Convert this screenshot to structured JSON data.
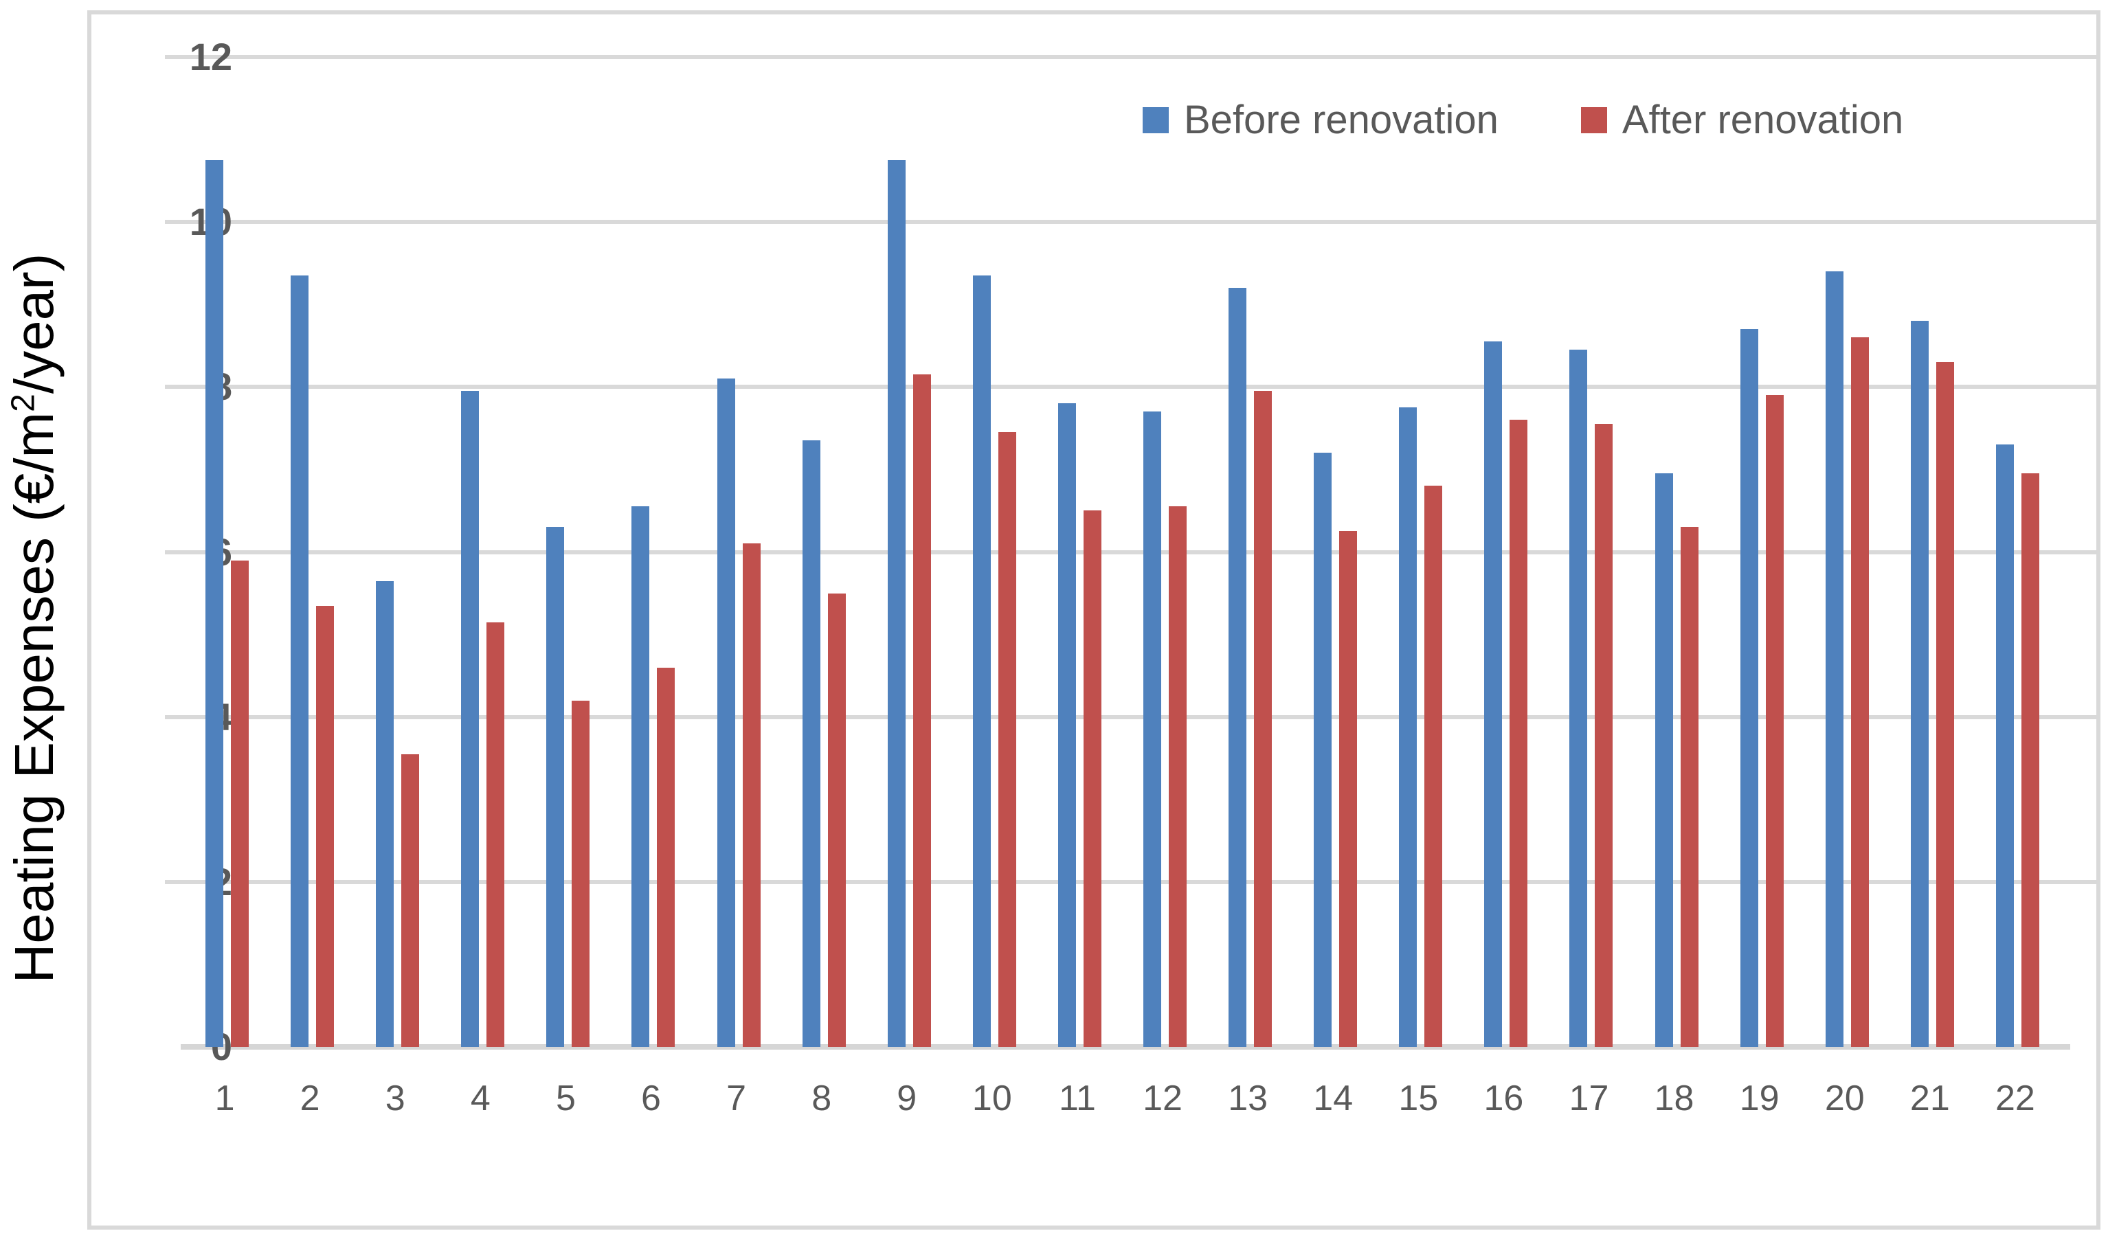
{
  "colors": {
    "before": "#4f81bd",
    "after": "#c0504d",
    "gridline": "#d9d9d9",
    "axis_line": "#d6d6d6",
    "tick_text": "#595959",
    "frame_border": "#d9d9d9",
    "y_title_text": "#000000"
  },
  "y_axis": {
    "title_prefix": "Heating Expenses (€/m",
    "title_sup": "2",
    "title_suffix": "/year)"
  },
  "legend": {
    "before": "Before renovation",
    "after": "After renovation"
  },
  "chart_data": {
    "type": "bar",
    "title": "",
    "xlabel": "",
    "ylabel": "Heating Expenses (€/m²/year)",
    "ylim": [
      0,
      12
    ],
    "ytick_step": 2,
    "grid": true,
    "legend_position": "top-right-inside",
    "categories": [
      "1",
      "2",
      "3",
      "4",
      "5",
      "6",
      "7",
      "8",
      "9",
      "10",
      "11",
      "12",
      "13",
      "14",
      "15",
      "16",
      "17",
      "18",
      "19",
      "20",
      "21",
      "22"
    ],
    "series": [
      {
        "name": "Before renovation",
        "color": "#4f81bd",
        "values": [
          10.75,
          9.35,
          5.65,
          7.95,
          6.3,
          6.55,
          8.1,
          7.35,
          10.75,
          9.35,
          7.8,
          7.7,
          9.2,
          7.2,
          7.75,
          8.55,
          8.45,
          6.95,
          8.7,
          9.4,
          8.8,
          7.3
        ]
      },
      {
        "name": "After renovation",
        "color": "#c0504d",
        "values": [
          5.9,
          5.35,
          3.55,
          5.15,
          4.2,
          4.6,
          6.1,
          5.5,
          8.15,
          7.45,
          6.5,
          6.55,
          7.95,
          6.25,
          6.8,
          7.6,
          7.55,
          6.3,
          7.9,
          8.6,
          8.3,
          6.95
        ]
      }
    ]
  }
}
